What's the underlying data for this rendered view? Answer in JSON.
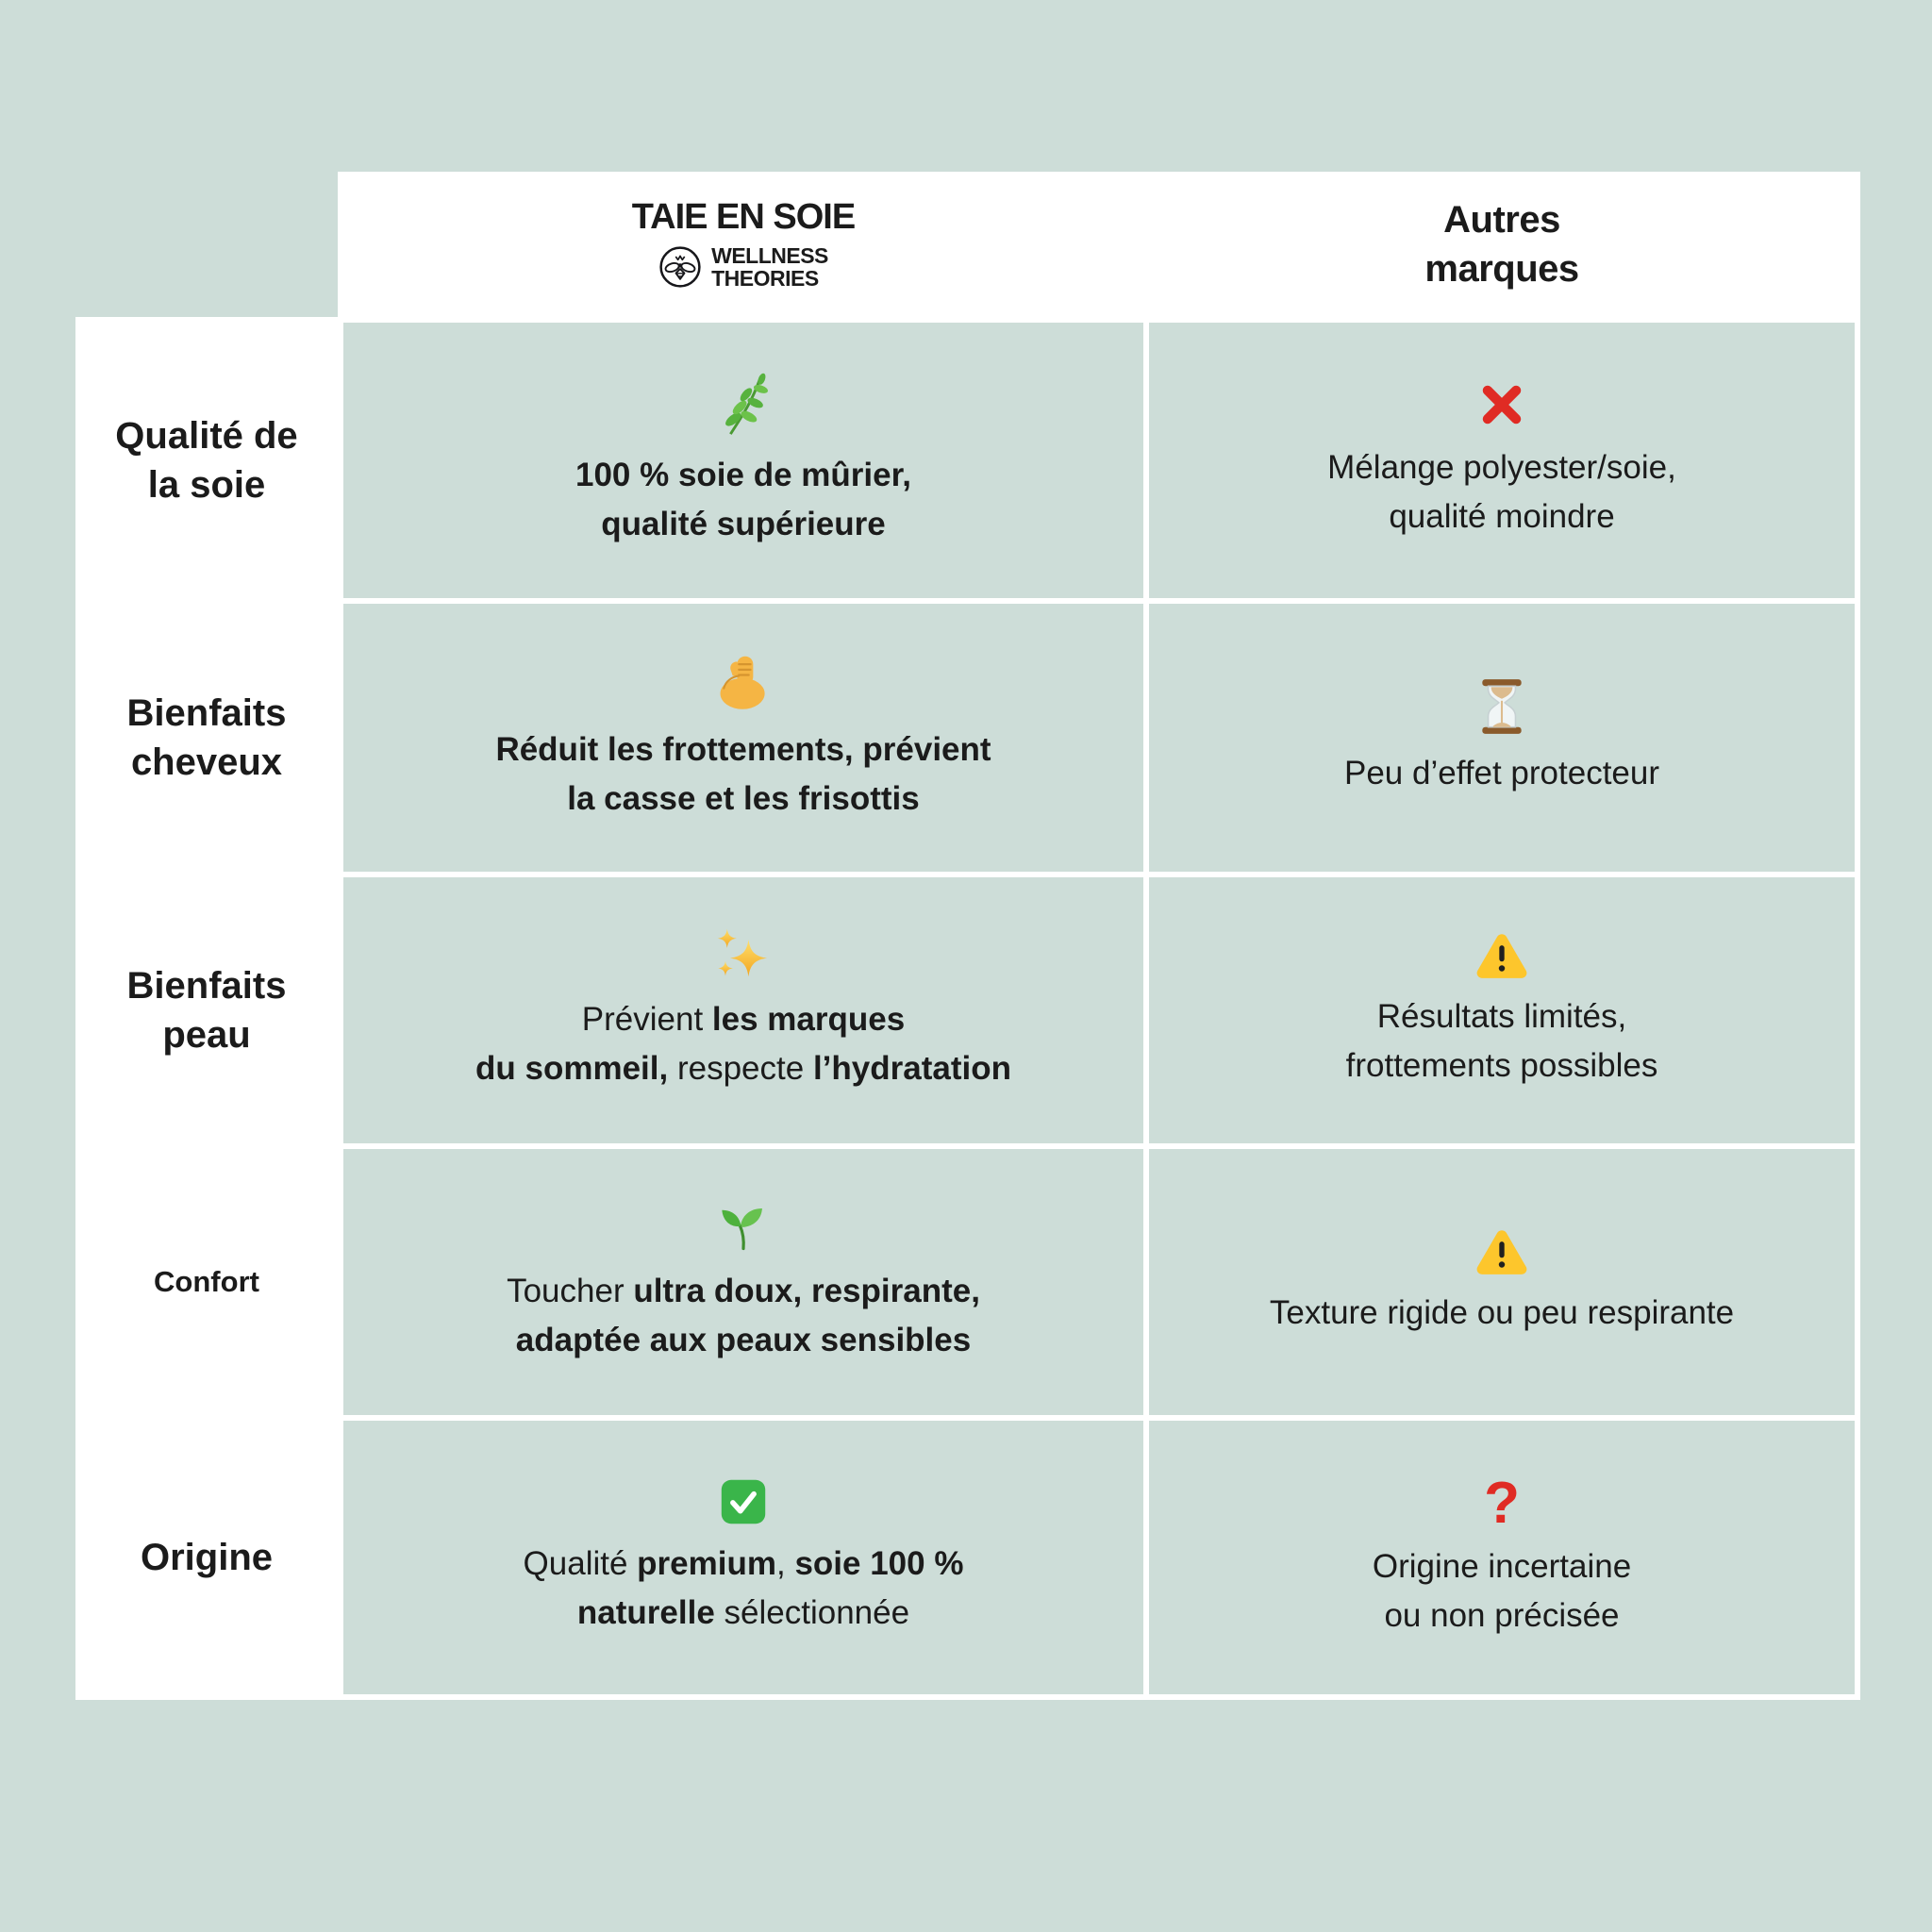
{
  "colors": {
    "page_bg": "#cdddd8",
    "cell_bg": "#cdddd8",
    "table_bg": "#ffffff",
    "text": "#1b1b1b",
    "red": "#e02b24",
    "warning_yellow": "#fdc62c",
    "check_green": "#3ab54a"
  },
  "header": {
    "brand": {
      "title": "TAIE EN SOIE",
      "logo_icon": "bee-logo-icon",
      "logo_line1": "WELLNESS",
      "logo_line2": "THEORIES"
    },
    "other": {
      "title": "Autres\nmarques"
    }
  },
  "rows": [
    {
      "label": "Qualité de\nla soie",
      "brand": {
        "icon": "herb-icon",
        "lines": [
          [
            {
              "t": "100 % soie de mûrier,",
              "b": true
            }
          ],
          [
            {
              "t": "qualité supérieure",
              "b": true
            }
          ]
        ]
      },
      "other": {
        "icon": "cross-mark-icon",
        "lines": [
          [
            {
              "t": "Mélange polyester/soie,",
              "b": false
            }
          ],
          [
            {
              "t": "qualité moindre",
              "b": false
            }
          ]
        ]
      }
    },
    {
      "label": "Bienfaits\ncheveux",
      "brand": {
        "icon": "flexed-biceps-icon",
        "lines": [
          [
            {
              "t": "Réduit les frottements, prévient",
              "b": true
            }
          ],
          [
            {
              "t": "la casse et les frisottis",
              "b": true
            }
          ]
        ]
      },
      "other": {
        "icon": "hourglass-icon",
        "lines": [
          [
            {
              "t": "Peu d’effet protecteur",
              "b": false
            }
          ]
        ]
      }
    },
    {
      "label": "Bienfaits\npeau",
      "brand": {
        "icon": "sparkles-icon",
        "lines": [
          [
            {
              "t": "Prévient ",
              "b": false
            },
            {
              "t": "les marques",
              "b": true
            }
          ],
          [
            {
              "t": "du sommeil,",
              "b": true
            },
            {
              "t": " respecte ",
              "b": false
            },
            {
              "t": "l’hydratation",
              "b": true
            }
          ]
        ]
      },
      "other": {
        "icon": "warning-icon",
        "lines": [
          [
            {
              "t": "Résultats limités,",
              "b": false
            }
          ],
          [
            {
              "t": "frottements possibles",
              "b": false
            }
          ]
        ]
      }
    },
    {
      "label": "Confort",
      "brand": {
        "icon": "seedling-icon",
        "lines": [
          [
            {
              "t": "Toucher ",
              "b": false
            },
            {
              "t": "ultra doux, respirante,",
              "b": true
            }
          ],
          [
            {
              "t": "adaptée aux peaux sensibles",
              "b": true
            }
          ]
        ]
      },
      "other": {
        "icon": "warning-icon",
        "lines": [
          [
            {
              "t": "Texture rigide ou peu respirante",
              "b": false
            }
          ]
        ]
      }
    },
    {
      "label": "Origine",
      "brand": {
        "icon": "check-mark-icon",
        "lines": [
          [
            {
              "t": "Qualité ",
              "b": false
            },
            {
              "t": "premium",
              "b": true
            },
            {
              "t": ", ",
              "b": false
            },
            {
              "t": "soie 100 %",
              "b": true
            }
          ],
          [
            {
              "t": "naturelle",
              "b": true
            },
            {
              "t": " sélectionnée",
              "b": false
            }
          ]
        ]
      },
      "other": {
        "icon": "question-mark-icon",
        "icon_glyph": "?",
        "lines": [
          [
            {
              "t": "Origine incertaine",
              "b": false
            }
          ],
          [
            {
              "t": "ou non précisée",
              "b": false
            }
          ]
        ]
      }
    }
  ],
  "chart_data": {
    "type": "table",
    "title": "Comparatif taie en soie : Wellness Theories vs autres marques",
    "columns": [
      "",
      "TAIE EN SOIE — WELLNESS THEORIES",
      "Autres marques"
    ],
    "rows": [
      [
        "Qualité de la soie",
        "🌿 100 % soie de mûrier, qualité supérieure",
        "❌ Mélange polyester/soie, qualité moindre"
      ],
      [
        "Bienfaits cheveux",
        "💪 Réduit les frottements, prévient la casse et les frisottis",
        "⏳ Peu d’effet protecteur"
      ],
      [
        "Bienfaits peau",
        "✨ Prévient les marques du sommeil, respecte l’hydratation",
        "⚠️ Résultats limités, frottements possibles"
      ],
      [
        "Confort",
        "🌱 Toucher ultra doux, respirante, adaptée aux peaux sensibles",
        "⚠️ Texture rigide ou peu respirante"
      ],
      [
        "Origine",
        "✅ Qualité premium, soie 100 % naturelle sélectionnée",
        "❓ Origine incertaine ou non précisée"
      ]
    ]
  }
}
